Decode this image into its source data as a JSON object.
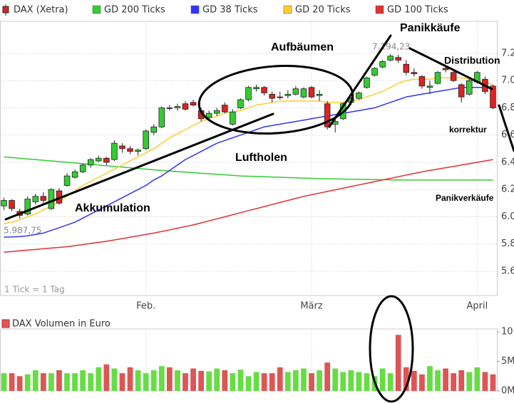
{
  "chart_data": {
    "type": "candlestick",
    "legend": [
      {
        "name": "DAX (Xetra)",
        "kind": "candle"
      },
      {
        "name": "GD 200 Ticks",
        "color": "#33cc33"
      },
      {
        "name": "GD 38 Ticks",
        "color": "#3333ff"
      },
      {
        "name": "GD 20 Ticks",
        "color": "#ffcc33"
      },
      {
        "name": "GD 100 Ticks",
        "color": "#e03030"
      }
    ],
    "up_color": "#33cc33",
    "down_color": "#dd2222",
    "candles": {
      "open": [
        6080,
        6120,
        6040,
        6020,
        6110,
        6150,
        6060,
        6190,
        6230,
        6290,
        6330,
        6380,
        6410,
        6430,
        6420,
        6520,
        6500,
        6480,
        6500,
        6620,
        6660,
        6800,
        6800,
        6830,
        6840,
        6780,
        6730,
        6760,
        6820,
        6680,
        6800,
        6860,
        6940,
        6950,
        6900,
        6880,
        6890,
        6900,
        6880,
        6950,
        6890,
        6830,
        6680,
        6720,
        6840,
        6870,
        6950,
        7040,
        7100,
        7150,
        7170,
        7120,
        7060,
        7030,
        6950,
        6980,
        7090,
        7060,
        6970,
        6900,
        6990,
        7010,
        6960
      ],
      "high": [
        6140,
        6130,
        6060,
        6150,
        6170,
        6180,
        6210,
        6210,
        6320,
        6350,
        6390,
        6430,
        6450,
        6440,
        6560,
        6540,
        6520,
        6500,
        6640,
        6680,
        6810,
        6820,
        6830,
        6850,
        6860,
        6800,
        6780,
        6800,
        6840,
        6790,
        6870,
        6960,
        6970,
        6960,
        6920,
        6920,
        6930,
        6960,
        6950,
        6960,
        6930,
        6850,
        6730,
        6840,
        6880,
        6920,
        7030,
        7100,
        7150,
        7194,
        7190,
        7150,
        7090,
        7040,
        7000,
        7070,
        7110,
        7070,
        6980,
        7010,
        7070,
        7030,
        6970
      ],
      "low": [
        6050,
        6040,
        5988,
        6010,
        6090,
        6100,
        6050,
        6090,
        6220,
        6280,
        6320,
        6360,
        6400,
        6380,
        6410,
        6470,
        6460,
        6450,
        6490,
        6600,
        6650,
        6780,
        6780,
        6780,
        6810,
        6700,
        6720,
        6740,
        6760,
        6670,
        6790,
        6850,
        6920,
        6890,
        6840,
        6860,
        6870,
        6890,
        6870,
        6870,
        6850,
        6640,
        6620,
        6710,
        6820,
        6860,
        6940,
        7030,
        7090,
        7140,
        7130,
        7040,
        7030,
        6940,
        6900,
        6970,
        7060,
        6990,
        6840,
        6890,
        6980,
        6900,
        6790
      ],
      "close": [
        6120,
        6060,
        6010,
        6130,
        6150,
        6120,
        6200,
        6100,
        6300,
        6330,
        6380,
        6420,
        6430,
        6400,
        6540,
        6500,
        6480,
        6490,
        6630,
        6660,
        6800,
        6800,
        6810,
        6790,
        6820,
        6720,
        6760,
        6780,
        6770,
        6770,
        6860,
        6950,
        6950,
        6910,
        6870,
        6880,
        6900,
        6940,
        6940,
        6880,
        6900,
        6660,
        6700,
        6830,
        6870,
        6910,
        7020,
        7090,
        7140,
        7180,
        7150,
        7060,
        7050,
        6960,
        6960,
        7060,
        7080,
        7000,
        6880,
        7000,
        7060,
        6920,
        6800
      ]
    },
    "series": [
      {
        "name": "GD 200 Ticks",
        "color": "#33cc33",
        "values": [
          6440,
          6435,
          6430,
          6425,
          6420,
          6415,
          6410,
          6405,
          6400,
          6395,
          6390,
          6385,
          6380,
          6375,
          6370,
          6365,
          6360,
          6355,
          6350,
          6345,
          6340,
          6336,
          6332,
          6328,
          6324,
          6320,
          6316,
          6312,
          6308,
          6304,
          6300,
          6298,
          6296,
          6294,
          6292,
          6290,
          6288,
          6286,
          6284,
          6282,
          6280,
          6279,
          6278,
          6277,
          6276,
          6275,
          6274,
          6273,
          6272,
          6271,
          6270,
          6270,
          6270,
          6270,
          6270,
          6270,
          6270,
          6270,
          6270,
          6270,
          6270,
          6270,
          6270
        ]
      },
      {
        "name": "GD 38 Ticks",
        "color": "#3333ff",
        "values": [
          5850,
          5852,
          5855,
          5860,
          5870,
          5880,
          5900,
          5920,
          5940,
          5960,
          5990,
          6020,
          6050,
          6080,
          6110,
          6140,
          6170,
          6200,
          6230,
          6270,
          6300,
          6340,
          6380,
          6420,
          6450,
          6480,
          6510,
          6540,
          6560,
          6580,
          6600,
          6620,
          6640,
          6660,
          6670,
          6680,
          6690,
          6700,
          6710,
          6720,
          6730,
          6740,
          6750,
          6760,
          6770,
          6780,
          6790,
          6800,
          6820,
          6840,
          6860,
          6880,
          6890,
          6900,
          6910,
          6920,
          6930,
          6940,
          6950,
          6950,
          6950,
          6950,
          6950
        ]
      },
      {
        "name": "GD 20 Ticks",
        "color": "#ffcc33",
        "values": [
          5950,
          5960,
          5980,
          6000,
          6020,
          6050,
          6080,
          6110,
          6150,
          6190,
          6230,
          6260,
          6290,
          6320,
          6350,
          6380,
          6410,
          6440,
          6470,
          6500,
          6540,
          6580,
          6610,
          6640,
          6670,
          6700,
          6720,
          6740,
          6760,
          6770,
          6780,
          6800,
          6820,
          6830,
          6840,
          6850,
          6850,
          6850,
          6850,
          6850,
          6850,
          6840,
          6840,
          6840,
          6850,
          6860,
          6880,
          6900,
          6920,
          6950,
          6980,
          7000,
          7010,
          7010,
          7010,
          7020,
          7020,
          7020,
          7020,
          7010,
          7000,
          6990,
          6970
        ]
      },
      {
        "name": "GD 100 Ticks",
        "color": "#e03030",
        "values": [
          5740,
          5745,
          5750,
          5755,
          5760,
          5765,
          5770,
          5775,
          5780,
          5788,
          5796,
          5804,
          5812,
          5820,
          5830,
          5840,
          5850,
          5860,
          5870,
          5880,
          5892,
          5904,
          5916,
          5928,
          5940,
          5955,
          5970,
          5985,
          6000,
          6015,
          6030,
          6045,
          6060,
          6075,
          6090,
          6105,
          6120,
          6135,
          6150,
          6162,
          6174,
          6186,
          6198,
          6210,
          6222,
          6234,
          6246,
          6258,
          6270,
          6282,
          6294,
          6306,
          6318,
          6330,
          6340,
          6350,
          6360,
          6370,
          6380,
          6390,
          6400,
          6410,
          6420
        ]
      }
    ],
    "xlim": [
      -0.5,
      62.5
    ],
    "xticks": [
      {
        "value": 18,
        "label": "Feb."
      },
      {
        "value": 39,
        "label": "März"
      },
      {
        "value": 60,
        "label": "April"
      }
    ],
    "ylim": [
      5422,
      7435
    ],
    "yticks": [
      {
        "value": 7200,
        "label": "7.2"
      },
      {
        "value": 7000,
        "label": "7.0"
      },
      {
        "value": 6800,
        "label": "6.8"
      },
      {
        "value": 6600,
        "label": "6.6"
      },
      {
        "value": 6400,
        "label": "6.4"
      },
      {
        "value": 6200,
        "label": "6.2"
      },
      {
        "value": 6000,
        "label": "6.0"
      },
      {
        "value": 5800,
        "label": "5.8"
      },
      {
        "value": 5600,
        "label": "5.6"
      }
    ],
    "grid": true,
    "low_label": "5.987,75",
    "high_label": "7.194,23",
    "tick_note": "1 Tick = 1 Tag",
    "annotations": [
      "Akkumulation",
      "Aufbäumen",
      "Luftholen",
      "Panikkäufe",
      "Distribution",
      "korrektur",
      "Panikverkäufe"
    ],
    "volume": {
      "name": "DAX Volumen in Euro",
      "color": "#dd5555",
      "values": [
        3.0,
        3.0,
        2.5,
        2.8,
        3.5,
        3.0,
        3.0,
        3.5,
        3.0,
        3.0,
        3.5,
        3.0,
        4.0,
        4.5,
        3.8,
        3.0,
        4.0,
        3.5,
        3.0,
        3.5,
        4.2,
        4.0,
        3.5,
        3.0,
        3.8,
        3.4,
        3.3,
        3.8,
        3.5,
        3.0,
        3.6,
        2.5,
        3.2,
        3.0,
        3.0,
        4.0,
        3.2,
        3.5,
        3.8,
        3.0,
        3.5,
        4.8,
        3.8,
        3.2,
        3.5,
        3.2,
        3.0,
        2.5,
        3.8,
        3.0,
        9.5,
        4.0,
        3.4,
        2.8,
        4.2,
        3.5,
        3.8,
        3.0,
        3.5,
        3.2,
        4.0,
        3.2,
        2.8
      ],
      "ylim": [
        0,
        10.5
      ],
      "yticks": [
        {
          "value": 10,
          "label": "10"
        },
        {
          "value": 5,
          "label": "5M"
        },
        {
          "value": 0,
          "label": "0M"
        }
      ]
    }
  }
}
